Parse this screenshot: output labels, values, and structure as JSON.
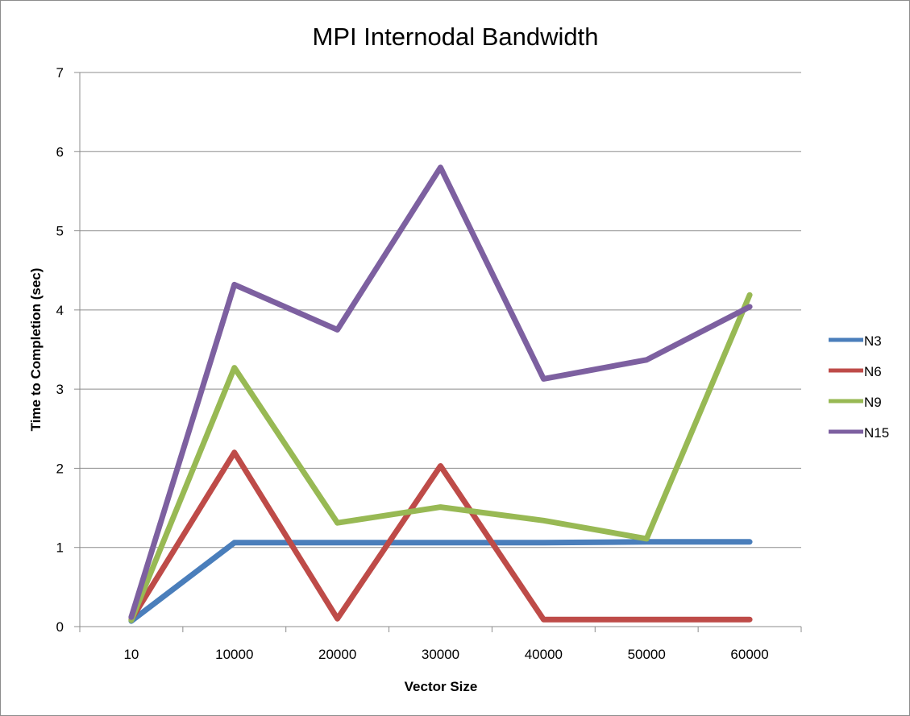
{
  "chart_data": {
    "type": "line",
    "title": "MPI Internodal Bandwidth",
    "xlabel": "Vector Size",
    "ylabel": "Time to Completion (sec)",
    "categories": [
      "10",
      "10000",
      "20000",
      "30000",
      "40000",
      "50000",
      "60000"
    ],
    "ylim": [
      0,
      7
    ],
    "yticks": [
      "0",
      "1",
      "2",
      "3",
      "4",
      "5",
      "6",
      "7"
    ],
    "grid": "horizontal",
    "legend_position": "right",
    "series": [
      {
        "name": "N3",
        "color": "#4a7ebb",
        "values": [
          0.07,
          1.06,
          1.06,
          1.06,
          1.06,
          1.07,
          1.07
        ]
      },
      {
        "name": "N6",
        "color": "#be4b48",
        "values": [
          0.09,
          2.2,
          0.1,
          2.03,
          0.09,
          0.09,
          0.09
        ]
      },
      {
        "name": "N9",
        "color": "#98b954",
        "values": [
          0.08,
          3.27,
          1.31,
          1.51,
          1.34,
          1.11,
          4.19
        ]
      },
      {
        "name": "N15",
        "color": "#7d60a0",
        "values": [
          0.12,
          4.32,
          3.75,
          5.8,
          3.13,
          3.37,
          4.04
        ]
      }
    ]
  }
}
